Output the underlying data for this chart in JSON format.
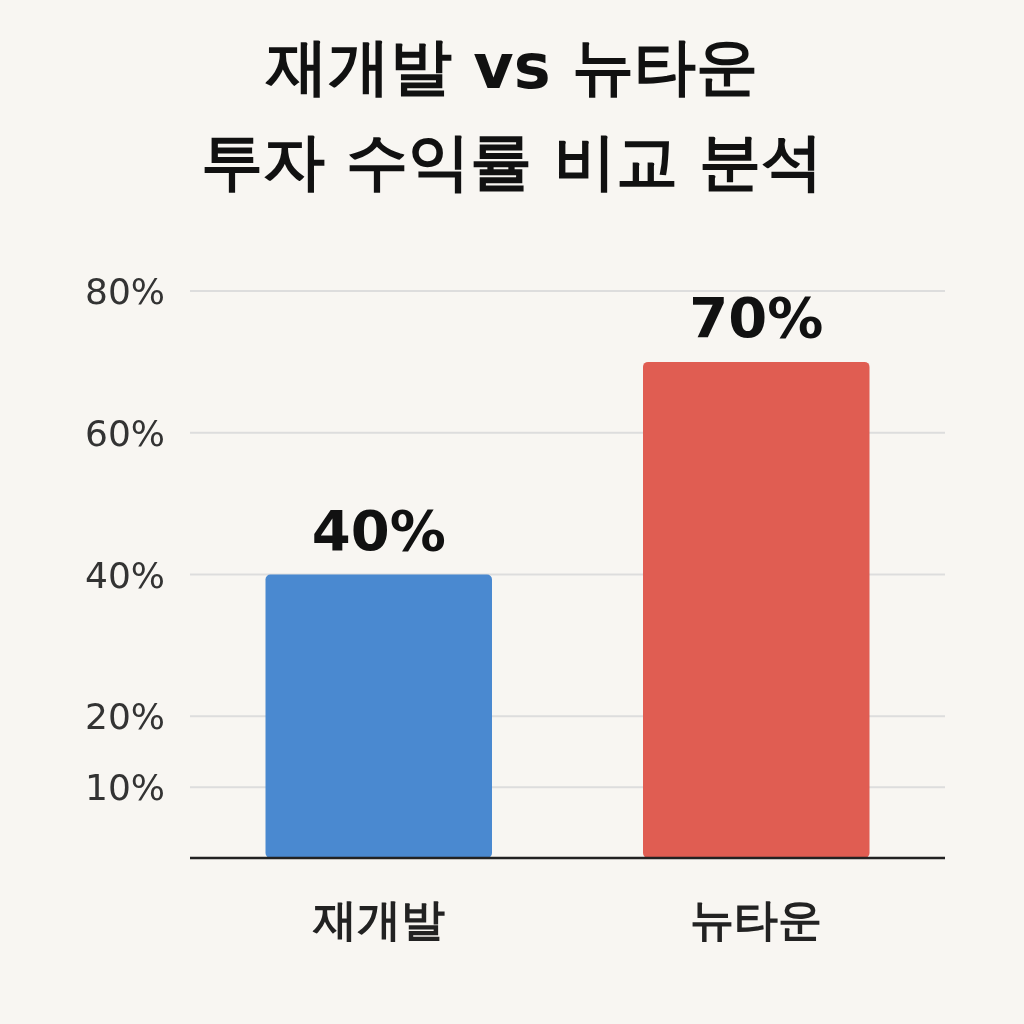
{
  "chart_data": {
    "type": "bar",
    "title": "재개발 vs 뉴타운\n투자 수익률 비교 분석",
    "categories": [
      "재개발",
      "뉴타운"
    ],
    "values": [
      40,
      70
    ],
    "colors": [
      "#4a89d0",
      "#e05d52"
    ],
    "value_labels": [
      "40%",
      "70%"
    ],
    "ylim": [
      0,
      80
    ],
    "yticks": [
      {
        "value": 10,
        "label": "10%"
      },
      {
        "value": 20,
        "label": "20%"
      },
      {
        "value": 40,
        "label": "40%"
      },
      {
        "value": 60,
        "label": "60%"
      },
      {
        "value": 80,
        "label": "80%"
      }
    ],
    "grid": "y"
  }
}
